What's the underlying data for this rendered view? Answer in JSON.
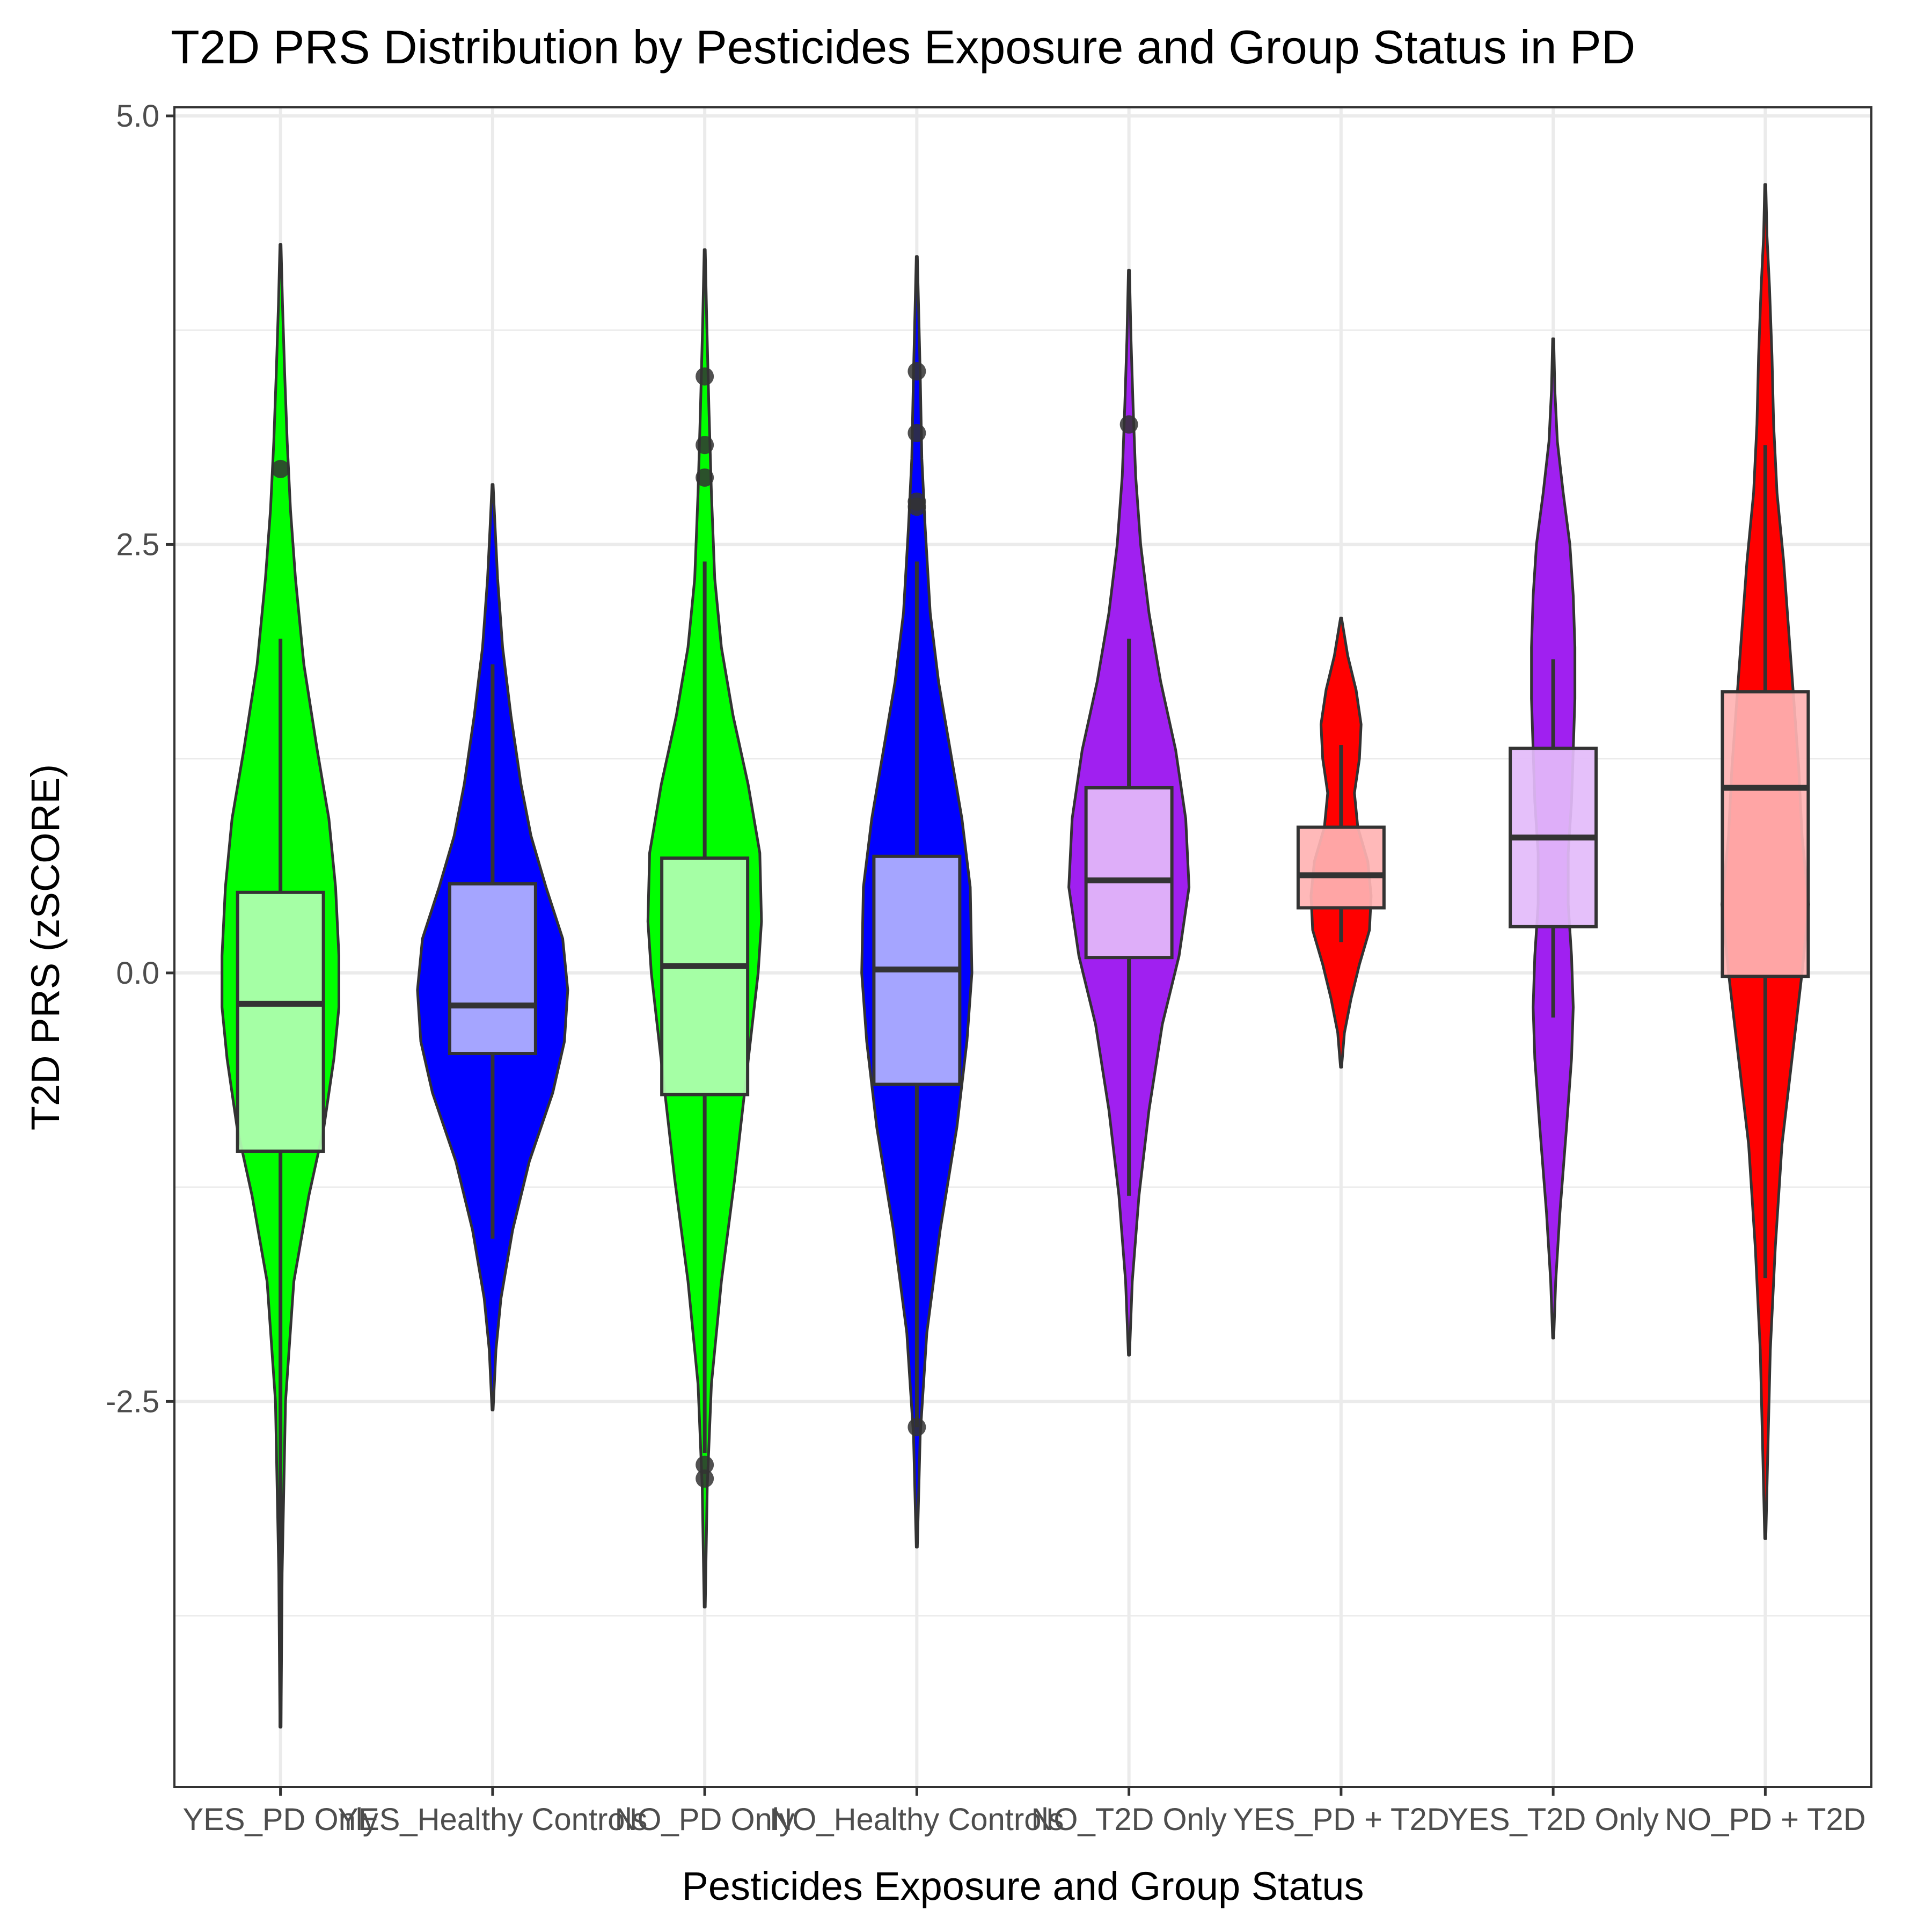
{
  "chart_data": {
    "type": "violin",
    "title": "T2D PRS Distribution by Pesticides Exposure and Group Status in PD",
    "xlabel": "Pesticides Exposure and Group Status",
    "ylabel": "T2D PRS (zSCORE)",
    "ylim": [
      -4.75,
      5.05
    ],
    "yticks": [
      5.0,
      2.5,
      0.0,
      -2.5
    ],
    "ytick_labels": [
      "5.0",
      "2.5",
      "0.0",
      "-2.5"
    ],
    "grid": true,
    "legend": "none",
    "categories": [
      "YES_PD Only",
      "YES_Healthy Controls",
      "NO_PD Only",
      "NO_Healthy Controls",
      "NO_T2D Only",
      "YES_PD + T2D",
      "YES_T2D Only",
      "NO_PD + T2D"
    ],
    "groups": [
      {
        "name": "YES_PD Only",
        "color": "#00ff00",
        "box_color": "#b3ffb3",
        "min": -4.4,
        "max": 4.25,
        "q1": -1.04,
        "median": -0.18,
        "q3": 0.47,
        "whisker_low": -4.4,
        "whisker_high": 1.95,
        "outliers": [
          2.94
        ],
        "violin": [
          [
            -4.4,
            0.3
          ],
          [
            -3.5,
            1
          ],
          [
            -2.5,
            3
          ],
          [
            -1.8,
            8
          ],
          [
            -1.3,
            17
          ],
          [
            -0.9,
            26
          ],
          [
            -0.5,
            32
          ],
          [
            -0.2,
            35
          ],
          [
            0.1,
            35
          ],
          [
            0.5,
            33
          ],
          [
            0.9,
            29
          ],
          [
            1.3,
            22
          ],
          [
            1.8,
            14
          ],
          [
            2.3,
            9
          ],
          [
            2.7,
            6
          ],
          [
            3.1,
            4
          ],
          [
            3.5,
            2.5
          ],
          [
            3.9,
            1.2
          ],
          [
            4.25,
            0.3
          ]
        ]
      },
      {
        "name": "YES_Healthy Controls",
        "color": "#0000ff",
        "box_color": "#b3b3ff",
        "min": -2.55,
        "max": 2.85,
        "q1": -0.47,
        "median": -0.19,
        "q3": 0.52,
        "whisker_low": -1.55,
        "whisker_high": 1.8,
        "outliers": [],
        "violin": [
          [
            -2.55,
            0.3
          ],
          [
            -2.2,
            2
          ],
          [
            -1.9,
            5
          ],
          [
            -1.5,
            12
          ],
          [
            -1.1,
            22
          ],
          [
            -0.7,
            36
          ],
          [
            -0.4,
            43
          ],
          [
            -0.1,
            45
          ],
          [
            0.2,
            42
          ],
          [
            0.5,
            32
          ],
          [
            0.8,
            23
          ],
          [
            1.1,
            17
          ],
          [
            1.5,
            11
          ],
          [
            1.9,
            6
          ],
          [
            2.3,
            3
          ],
          [
            2.6,
            1.5
          ],
          [
            2.85,
            0.3
          ]
        ]
      },
      {
        "name": "NO_PD Only",
        "color": "#00ff00",
        "box_color": "#b3ffb3",
        "min": -3.7,
        "max": 4.22,
        "q1": -0.71,
        "median": 0.04,
        "q3": 0.67,
        "whisker_low": -2.8,
        "whisker_high": 2.4,
        "outliers": [
          3.48,
          3.08,
          2.89,
          -2.87,
          -2.95
        ],
        "violin": [
          [
            -3.7,
            0.3
          ],
          [
            -3.0,
            1.5
          ],
          [
            -2.4,
            4
          ],
          [
            -1.8,
            10
          ],
          [
            -1.2,
            18
          ],
          [
            -0.6,
            25
          ],
          [
            0.0,
            32
          ],
          [
            0.3,
            34
          ],
          [
            0.7,
            33
          ],
          [
            1.1,
            26
          ],
          [
            1.5,
            17
          ],
          [
            1.9,
            10
          ],
          [
            2.3,
            6
          ],
          [
            2.8,
            4
          ],
          [
            3.3,
            2.5
          ],
          [
            3.8,
            1.2
          ],
          [
            4.22,
            0.3
          ]
        ]
      },
      {
        "name": "NO_Healthy Controls",
        "color": "#0000ff",
        "box_color": "#b3b3ff",
        "min": -3.35,
        "max": 4.18,
        "q1": -0.65,
        "median": 0.02,
        "q3": 0.68,
        "whisker_low": -2.65,
        "whisker_high": 2.4,
        "outliers": [
          3.51,
          3.15,
          2.75,
          2.72,
          -2.65
        ],
        "violin": [
          [
            -3.35,
            0.3
          ],
          [
            -2.7,
            2
          ],
          [
            -2.1,
            6
          ],
          [
            -1.5,
            14
          ],
          [
            -0.9,
            24
          ],
          [
            -0.4,
            30
          ],
          [
            0.0,
            33
          ],
          [
            0.5,
            32
          ],
          [
            0.9,
            27
          ],
          [
            1.3,
            20
          ],
          [
            1.7,
            13
          ],
          [
            2.1,
            8
          ],
          [
            2.6,
            5
          ],
          [
            3.0,
            3
          ],
          [
            3.5,
            2
          ],
          [
            3.9,
            1
          ],
          [
            4.18,
            0.3
          ]
        ]
      },
      {
        "name": "NO_T2D Only",
        "color": "#a020f0",
        "box_color": "#e3bbfa",
        "min": -2.23,
        "max": 4.1,
        "q1": 0.09,
        "median": 0.54,
        "q3": 1.08,
        "whisker_low": -1.3,
        "whisker_high": 1.95,
        "outliers": [
          3.2
        ],
        "violin": [
          [
            -2.23,
            0.3
          ],
          [
            -1.8,
            2
          ],
          [
            -1.3,
            6
          ],
          [
            -0.8,
            12
          ],
          [
            -0.3,
            20
          ],
          [
            0.1,
            30
          ],
          [
            0.5,
            36
          ],
          [
            0.9,
            34
          ],
          [
            1.3,
            28
          ],
          [
            1.7,
            19
          ],
          [
            2.1,
            12
          ],
          [
            2.5,
            7
          ],
          [
            2.9,
            4
          ],
          [
            3.3,
            2.5
          ],
          [
            3.7,
            1.2
          ],
          [
            4.1,
            0.3
          ]
        ]
      },
      {
        "name": "YES_PD + T2D",
        "color": "#ff0000",
        "box_color": "#ffb3b3",
        "min": -0.55,
        "max": 2.07,
        "q1": 0.38,
        "median": 0.57,
        "q3": 0.85,
        "whisker_low": 0.18,
        "whisker_high": 1.33,
        "outliers": [],
        "violin": [
          [
            -0.55,
            0.3
          ],
          [
            -0.35,
            2
          ],
          [
            -0.15,
            6
          ],
          [
            0.05,
            11
          ],
          [
            0.25,
            17
          ],
          [
            0.45,
            18
          ],
          [
            0.65,
            16
          ],
          [
            0.85,
            10
          ],
          [
            1.05,
            8
          ],
          [
            1.25,
            11
          ],
          [
            1.45,
            12
          ],
          [
            1.65,
            9
          ],
          [
            1.85,
            4
          ],
          [
            2.07,
            0.3
          ]
        ]
      },
      {
        "name": "YES_T2D Only",
        "color": "#a020f0",
        "box_color": "#e3bbfa",
        "min": -2.13,
        "max": 3.7,
        "q1": 0.27,
        "median": 0.79,
        "q3": 1.31,
        "whisker_low": -0.26,
        "whisker_high": 1.83,
        "outliers": [],
        "violin": [
          [
            -2.13,
            0.3
          ],
          [
            -1.8,
            1.5
          ],
          [
            -1.4,
            4
          ],
          [
            -0.9,
            8
          ],
          [
            -0.5,
            11
          ],
          [
            -0.2,
            12
          ],
          [
            0.1,
            11
          ],
          [
            0.4,
            9
          ],
          [
            0.7,
            9
          ],
          [
            1.0,
            11
          ],
          [
            1.3,
            12
          ],
          [
            1.6,
            13
          ],
          [
            1.9,
            13
          ],
          [
            2.2,
            12
          ],
          [
            2.5,
            10
          ],
          [
            2.8,
            6
          ],
          [
            3.1,
            2.5
          ],
          [
            3.4,
            1
          ],
          [
            3.7,
            0.3
          ]
        ]
      },
      {
        "name": "NO_PD + T2D",
        "color": "#ff0000",
        "box_color": "#ffb3b3",
        "min": -3.3,
        "max": 4.6,
        "q1": -0.02,
        "median": 1.08,
        "q3": 1.64,
        "whisker_low": -1.78,
        "whisker_high": 3.08,
        "outliers": [],
        "violin": [
          [
            -3.3,
            0.3
          ],
          [
            -2.8,
            1.5
          ],
          [
            -2.2,
            3
          ],
          [
            -1.6,
            6
          ],
          [
            -1.0,
            10
          ],
          [
            -0.5,
            16
          ],
          [
            0.0,
            22
          ],
          [
            0.4,
            26
          ],
          [
            0.8,
            22
          ],
          [
            1.2,
            20
          ],
          [
            1.6,
            17
          ],
          [
            2.0,
            14
          ],
          [
            2.4,
            11
          ],
          [
            2.8,
            7
          ],
          [
            3.2,
            5
          ],
          [
            3.6,
            4
          ],
          [
            4.0,
            2.5
          ],
          [
            4.3,
            1
          ],
          [
            4.6,
            0.3
          ]
        ]
      }
    ]
  }
}
